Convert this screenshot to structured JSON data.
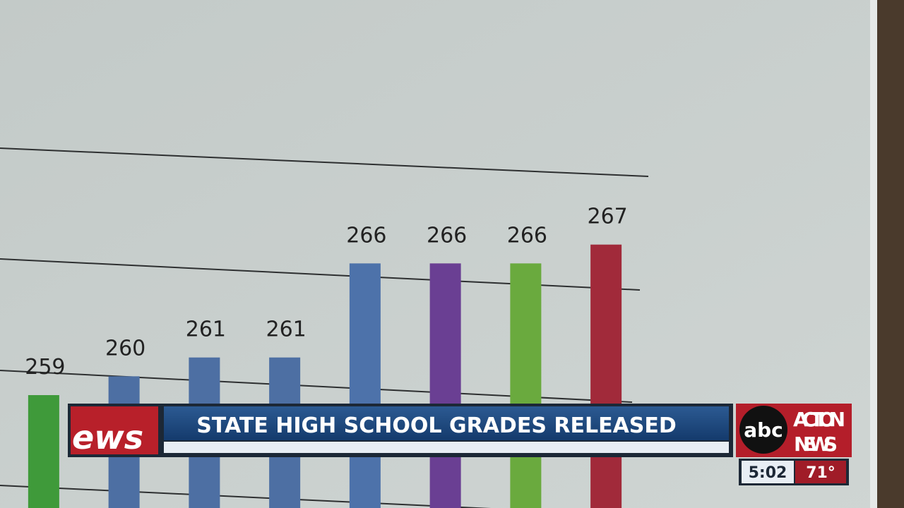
{
  "chart_data": {
    "type": "bar",
    "categories": [
      null,
      null,
      null,
      null,
      null,
      null,
      null,
      null
    ],
    "values": [
      259,
      260,
      261,
      261,
      266,
      266,
      266,
      267
    ],
    "colors": [
      "#3f9a3a",
      "#4d6fa3",
      "#4d6fa3",
      "#4d6fa3",
      "#4d72aa",
      "#6a3f93",
      "#6aaa3e",
      "#a12a3a"
    ],
    "ylim": [
      253,
      280
    ]
  },
  "overlay": {
    "logo_text": "ews",
    "headline": "STATE HIGH SCHOOL GRADES RELEASED",
    "station": {
      "network": "abc",
      "name": [
        "ACTION",
        "NEWS"
      ],
      "time": "5:02",
      "temperature": "71°"
    }
  }
}
